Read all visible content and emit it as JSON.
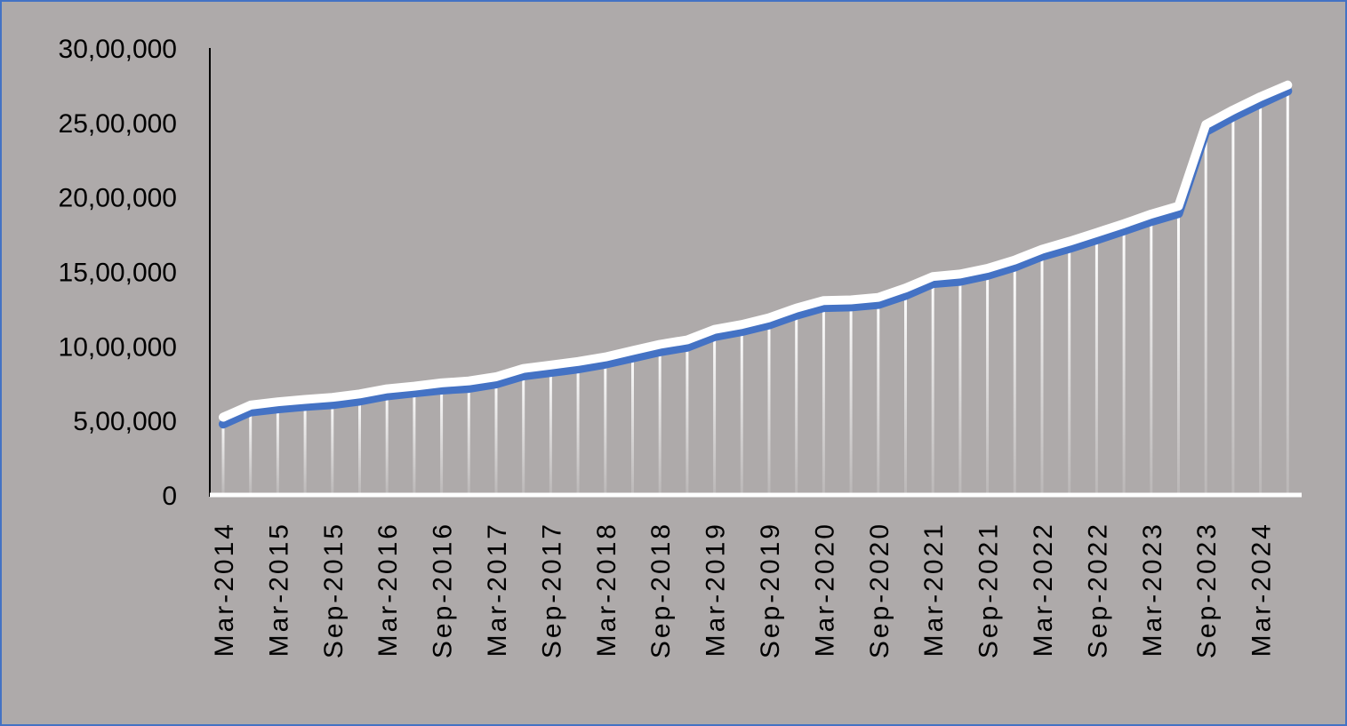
{
  "chart_data": {
    "type": "line",
    "title": "",
    "xlabel": "",
    "ylabel": "",
    "ylim": [
      0,
      3000000
    ],
    "grid": false,
    "legend": "none",
    "y_ticks": [
      {
        "value": 0,
        "label": "0"
      },
      {
        "value": 500000,
        "label": "5,00,000"
      },
      {
        "value": 1000000,
        "label": "10,00,000"
      },
      {
        "value": 1500000,
        "label": "15,00,000"
      },
      {
        "value": 2000000,
        "label": "20,00,000"
      },
      {
        "value": 2500000,
        "label": "25,00,000"
      },
      {
        "value": 3000000,
        "label": "30,00,000"
      }
    ],
    "x_tick_labels": [
      "Mar-2014",
      "Mar-2015",
      "Sep-2015",
      "Mar-2016",
      "Sep-2016",
      "Mar-2017",
      "Sep-2017",
      "Mar-2018",
      "Sep-2018",
      "Mar-2019",
      "Sep-2019",
      "Mar-2020",
      "Sep-2020",
      "Mar-2021",
      "Sep-2021",
      "Mar-2022",
      "Sep-2022",
      "Mar-2023",
      "Sep-2023",
      "Mar-2024"
    ],
    "x_tick_label_indices": [
      0,
      2,
      4,
      6,
      8,
      10,
      12,
      14,
      16,
      18,
      20,
      22,
      24,
      26,
      28,
      30,
      32,
      34,
      36,
      38
    ],
    "series": [
      {
        "color": "#4472c4",
        "values": [
          476000,
          557000,
          578000,
          594000,
          606000,
          630000,
          665000,
          685000,
          704000,
          715000,
          745000,
          799000,
          822000,
          846000,
          878000,
          919000,
          961000,
          991000,
          1063000,
          1097000,
          1141000,
          1206000,
          1258000,
          1262000,
          1278000,
          1339000,
          1418000,
          1434000,
          1473000,
          1529000,
          1602000,
          1654000,
          1712000,
          1773000,
          1835000,
          1889000,
          2439000,
          2537000,
          2626000,
          2711000
        ]
      },
      {
        "color": "#ffffff",
        "values": [
          522000,
          603000,
          625000,
          641000,
          655000,
          678000,
          712000,
          730000,
          752000,
          765000,
          793000,
          849000,
          872000,
          896000,
          926000,
          969000,
          1011000,
          1041000,
          1111000,
          1144000,
          1189000,
          1254000,
          1305000,
          1309000,
          1326000,
          1389000,
          1466000,
          1483000,
          1521000,
          1577000,
          1649000,
          1702000,
          1761000,
          1821000,
          1885000,
          1939000,
          2486000,
          2584000,
          2673000,
          2751000
        ]
      }
    ]
  }
}
